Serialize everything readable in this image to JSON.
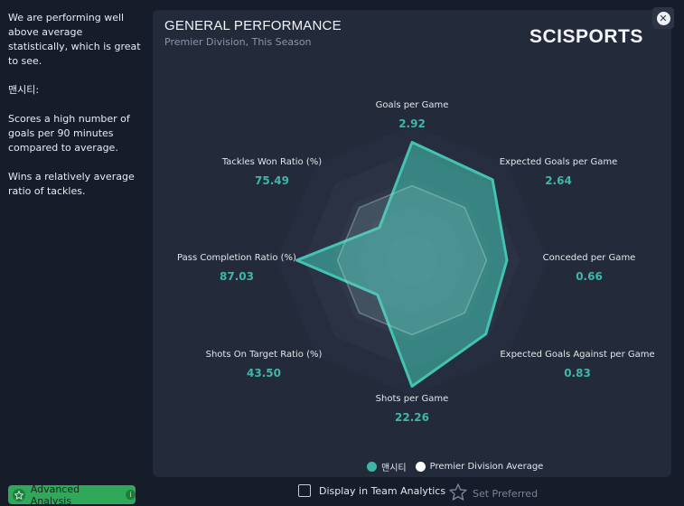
{
  "sidebar": {
    "summary": "We are performing well above average statistically, which is great to see.",
    "team_heading": "맨시티:",
    "points": [
      "Scores a high number of goals per 90 minutes compared to average.",
      "Wins a relatively average ratio of tackles."
    ],
    "advanced_button": "Advanced Analysis"
  },
  "card": {
    "title": "GENERAL PERFORMANCE",
    "subtitle": "Premier Division, This Season",
    "brand": "SCISPORTS"
  },
  "legend": {
    "team": "맨시티",
    "average": "Premier Division Average"
  },
  "footer": {
    "display_option": "Display in Team Analytics",
    "set_preferred": "Set Preferred"
  },
  "chart_data": {
    "type": "radar",
    "title": "GENERAL PERFORMANCE",
    "axes": [
      {
        "label": "Goals per Game",
        "value": "2.92"
      },
      {
        "label": "Expected Goals per Game",
        "value": "2.64"
      },
      {
        "label": "Conceded per Game",
        "value": "0.66"
      },
      {
        "label": "Expected Goals Against per Game",
        "value": "0.83"
      },
      {
        "label": "Shots per Game",
        "value": "22.26"
      },
      {
        "label": "Shots On Target Ratio (%)",
        "value": "43.50"
      },
      {
        "label": "Pass Completion Ratio (%)",
        "value": "87.03"
      },
      {
        "label": "Tackles Won Ratio (%)",
        "value": "75.49"
      }
    ],
    "series": [
      {
        "name": "맨시티",
        "color": "#3fb6a8",
        "values": [
          0.87,
          0.84,
          0.7,
          0.77,
          0.93,
          0.36,
          0.85,
          0.34
        ]
      },
      {
        "name": "Premier Division Average",
        "color": "#ffffff",
        "values": [
          0.55,
          0.55,
          0.55,
          0.55,
          0.55,
          0.55,
          0.55,
          0.55
        ]
      }
    ]
  }
}
